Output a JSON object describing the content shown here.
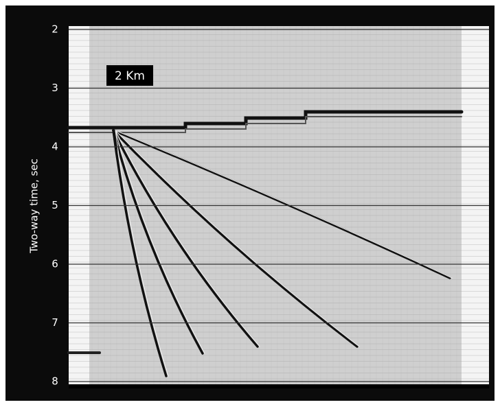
{
  "y_axis": {
    "label": "Two-way time, sec",
    "lim": [
      2,
      8
    ],
    "ticks": [
      2,
      3,
      4,
      5,
      6,
      7,
      8
    ]
  },
  "scale_label": "2 Km"
}
